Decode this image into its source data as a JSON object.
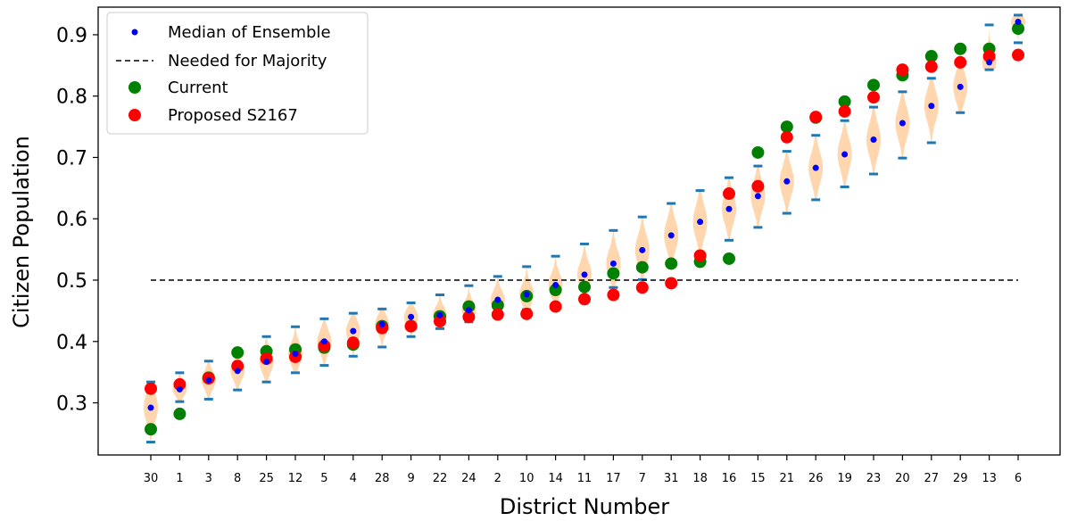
{
  "chart_data": {
    "type": "scatter",
    "title": "",
    "xlabel": "District Number",
    "ylabel": "Citizen Population",
    "categories": [
      "30",
      "1",
      "3",
      "8",
      "25",
      "12",
      "5",
      "4",
      "28",
      "9",
      "22",
      "24",
      "2",
      "10",
      "14",
      "11",
      "17",
      "7",
      "31",
      "18",
      "16",
      "15",
      "21",
      "26",
      "19",
      "23",
      "20",
      "27",
      "29",
      "13",
      "6"
    ],
    "ylim": [
      0.215,
      0.945
    ],
    "yticks": [
      0.3,
      0.4,
      0.5,
      0.6,
      0.7,
      0.8,
      0.9
    ],
    "ytick_labels": [
      "0.3",
      "0.4",
      "0.5",
      "0.6",
      "0.7",
      "0.8",
      "0.9"
    ],
    "grid": false,
    "legend_position": "upper-left",
    "majority_line": {
      "name": "Needed for Majority",
      "value": 0.5,
      "color": "#000000",
      "style": "dashed"
    },
    "violin_color": "#ffcc99",
    "whisker_color": "#1f77b4",
    "series": [
      {
        "name": "Median of Ensemble",
        "color": "#0000ff",
        "marker": "small-dot",
        "values": [
          0.292,
          0.322,
          0.337,
          0.352,
          0.367,
          0.38,
          0.4,
          0.417,
          0.428,
          0.44,
          0.443,
          0.451,
          0.468,
          0.477,
          0.492,
          0.509,
          0.527,
          0.549,
          0.573,
          0.595,
          0.616,
          0.637,
          0.661,
          0.683,
          0.705,
          0.729,
          0.756,
          0.784,
          0.815,
          0.855,
          0.921
        ]
      },
      {
        "name": "Current",
        "color": "#008000",
        "marker": "large-dot",
        "values": [
          0.257,
          0.282,
          0.341,
          0.382,
          0.384,
          0.387,
          0.39,
          0.395,
          0.425,
          0.425,
          0.441,
          0.457,
          0.459,
          0.474,
          0.484,
          0.489,
          0.511,
          0.521,
          0.527,
          0.53,
          0.535,
          0.708,
          0.75,
          0.765,
          0.791,
          0.818,
          0.834,
          0.865,
          0.877,
          0.877,
          0.91
        ]
      },
      {
        "name": "Proposed S2167",
        "color": "#ff0000",
        "marker": "large-dot",
        "values": [
          0.323,
          0.33,
          0.34,
          0.36,
          0.372,
          0.375,
          0.393,
          0.398,
          0.422,
          0.425,
          0.433,
          0.44,
          0.444,
          0.445,
          0.457,
          0.469,
          0.476,
          0.488,
          0.495,
          0.54,
          0.641,
          0.653,
          0.733,
          0.766,
          0.775,
          0.798,
          0.843,
          0.848,
          0.855,
          0.865,
          0.867
        ]
      }
    ],
    "whisker_ranges": [
      [
        0.236,
        0.334
      ],
      [
        0.302,
        0.349
      ],
      [
        0.306,
        0.368
      ],
      [
        0.321,
        0.382
      ],
      [
        0.334,
        0.408
      ],
      [
        0.349,
        0.424
      ],
      [
        0.361,
        0.437
      ],
      [
        0.376,
        0.446
      ],
      [
        0.391,
        0.453
      ],
      [
        0.408,
        0.463
      ],
      [
        0.421,
        0.476
      ],
      [
        0.432,
        0.491
      ],
      [
        0.443,
        0.506
      ],
      [
        0.452,
        0.522
      ],
      [
        0.462,
        0.539
      ],
      [
        0.473,
        0.559
      ],
      [
        0.488,
        0.581
      ],
      [
        0.501,
        0.603
      ],
      [
        0.522,
        0.625
      ],
      [
        0.536,
        0.646
      ],
      [
        0.565,
        0.667
      ],
      [
        0.586,
        0.686
      ],
      [
        0.609,
        0.71
      ],
      [
        0.631,
        0.736
      ],
      [
        0.652,
        0.76
      ],
      [
        0.673,
        0.782
      ],
      [
        0.699,
        0.807
      ],
      [
        0.724,
        0.829
      ],
      [
        0.773,
        0.872
      ],
      [
        0.843,
        0.916
      ],
      [
        0.887,
        0.932
      ]
    ]
  }
}
